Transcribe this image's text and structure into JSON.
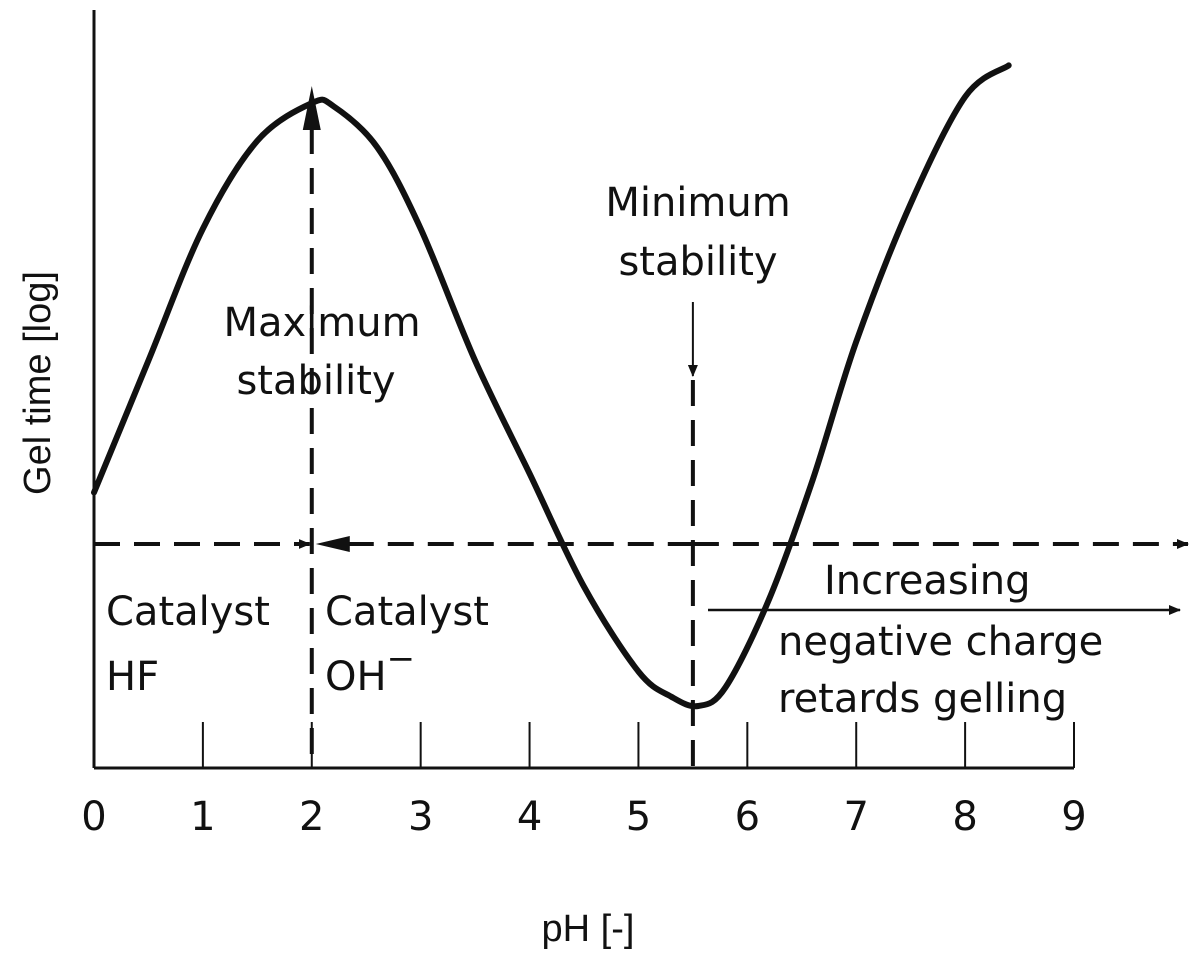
{
  "chart_data": {
    "type": "line",
    "title": "",
    "xlabel": "pH [-]",
    "ylabel": "Gel time [log]",
    "xlim": [
      0,
      9
    ],
    "ylim": [
      0,
      10
    ],
    "xticks": [
      "0",
      "1",
      "2",
      "3",
      "4",
      "5",
      "6",
      "7",
      "8",
      "9"
    ],
    "series": [
      {
        "name": "gel time",
        "x": [
          0,
          0.5,
          1.0,
          1.5,
          2.0,
          2.2,
          2.6,
          3.0,
          3.5,
          4.0,
          4.5,
          5.0,
          5.3,
          5.55,
          5.8,
          6.2,
          6.6,
          7.0,
          7.5,
          8.0,
          8.4
        ],
        "y": [
          3.4,
          5.5,
          7.6,
          9.0,
          9.6,
          9.55,
          8.9,
          7.6,
          5.5,
          3.7,
          1.9,
          0.55,
          0.15,
          0.0,
          0.3,
          1.7,
          3.6,
          5.8,
          8.0,
          9.7,
          10.2
        ]
      }
    ],
    "reference_lines": {
      "horizontal_dashed_y": 3.0,
      "vertical_dashed_x": [
        2.0,
        5.5
      ]
    },
    "annotations": {
      "maximum_stability": [
        "Maximum",
        "stability"
      ],
      "minimum_stability": [
        "Minimum",
        "stability"
      ],
      "catalyst_hf": [
        "Catalyst",
        "HF"
      ],
      "catalyst_oh": [
        "Catalyst",
        "OH",
        "−"
      ],
      "increasing": [
        "Increasing",
        "negative charge",
        "retards gelling"
      ]
    }
  }
}
